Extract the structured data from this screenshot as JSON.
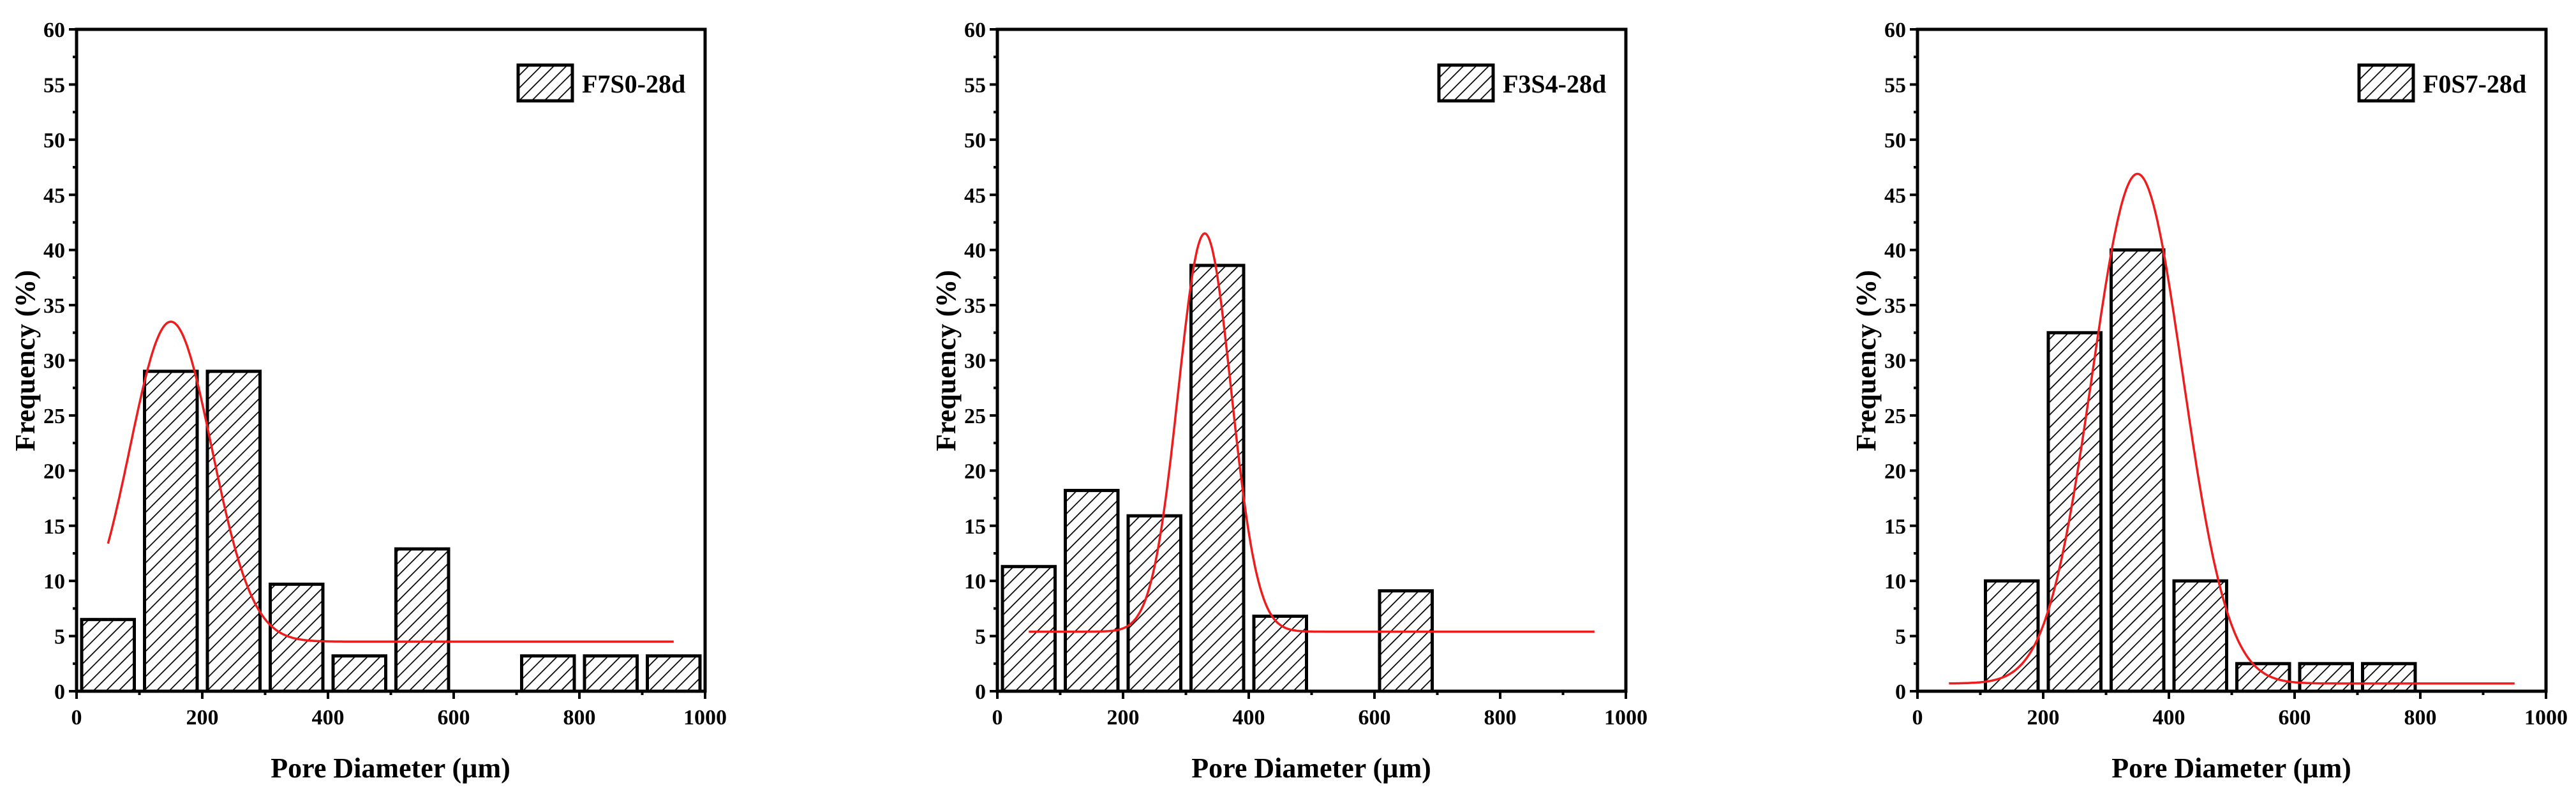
{
  "chart_data": [
    {
      "type": "bar",
      "title": "",
      "legend": "F7S0-28d",
      "xlabel": "Pore Diameter (µm)",
      "ylabel": "Frequency (%)",
      "xlim": [
        0,
        1000
      ],
      "ylim": [
        0,
        60
      ],
      "xticks": [
        0,
        200,
        400,
        600,
        800,
        1000
      ],
      "yticks": [
        0,
        5,
        10,
        15,
        20,
        25,
        30,
        35,
        40,
        45,
        50,
        55,
        60
      ],
      "bin_width": 100,
      "bins": [
        {
          "center": 50,
          "value": 6.5
        },
        {
          "center": 150,
          "value": 29.0
        },
        {
          "center": 250,
          "value": 29.0
        },
        {
          "center": 350,
          "value": 9.7
        },
        {
          "center": 450,
          "value": 3.2
        },
        {
          "center": 550,
          "value": 12.9
        },
        {
          "center": 750,
          "value": 3.2
        },
        {
          "center": 850,
          "value": 3.2
        },
        {
          "center": 950,
          "value": 3.2
        }
      ],
      "fit": {
        "type": "gaussian",
        "baseline": 4.5,
        "amplitude": 29.0,
        "center": 150,
        "sigma": 65,
        "x_start": 50,
        "x_end": 950
      }
    },
    {
      "type": "bar",
      "title": "",
      "legend": "F3S4-28d",
      "xlabel": "Pore Diameter (µm)",
      "ylabel": "Frequency (%)",
      "xlim": [
        0,
        1000
      ],
      "ylim": [
        0,
        60
      ],
      "xticks": [
        0,
        200,
        400,
        600,
        800,
        1000
      ],
      "yticks": [
        0,
        5,
        10,
        15,
        20,
        25,
        30,
        35,
        40,
        45,
        50,
        55,
        60
      ],
      "bin_width": 100,
      "bins": [
        {
          "center": 50,
          "value": 11.3
        },
        {
          "center": 150,
          "value": 18.2
        },
        {
          "center": 250,
          "value": 15.9
        },
        {
          "center": 350,
          "value": 38.6
        },
        {
          "center": 450,
          "value": 6.8
        },
        {
          "center": 650,
          "value": 9.1
        }
      ],
      "fit": {
        "type": "gaussian",
        "baseline": 5.4,
        "amplitude": 36.1,
        "center": 330,
        "sigma": 42,
        "x_start": 50,
        "x_end": 950
      }
    },
    {
      "type": "bar",
      "title": "",
      "legend": "F0S7-28d",
      "xlabel": "Pore Diameter (µm)",
      "ylabel": "Frequency (%)",
      "xlim": [
        0,
        1000
      ],
      "ylim": [
        0,
        60
      ],
      "xticks": [
        0,
        200,
        400,
        600,
        800,
        1000
      ],
      "yticks": [
        0,
        5,
        10,
        15,
        20,
        25,
        30,
        35,
        40,
        45,
        50,
        55,
        60
      ],
      "bin_width": 100,
      "bins": [
        {
          "center": 150,
          "value": 10.0
        },
        {
          "center": 250,
          "value": 32.5
        },
        {
          "center": 350,
          "value": 40.0
        },
        {
          "center": 450,
          "value": 10.0
        },
        {
          "center": 550,
          "value": 2.5
        },
        {
          "center": 650,
          "value": 2.5
        },
        {
          "center": 750,
          "value": 2.5
        }
      ],
      "fit": {
        "type": "gaussian",
        "baseline": 0.7,
        "amplitude": 46.2,
        "center": 350,
        "sigma": 72,
        "x_start": 50,
        "x_end": 950
      }
    }
  ],
  "colors": {
    "axis": "#000000",
    "bar_fill": "#ffffff",
    "hatch": "#000000",
    "fit_curve": "#ee1c1c"
  }
}
